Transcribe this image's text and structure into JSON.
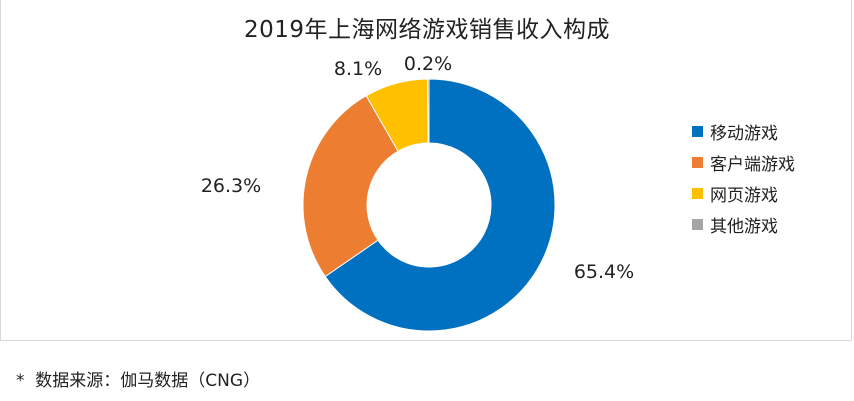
{
  "chart_data": {
    "type": "pie",
    "donut": true,
    "title": "2019年上海网络游戏销售收入构成",
    "series": [
      {
        "name": "移动游戏",
        "value": 65.4,
        "label": "65.4%",
        "color": "#0070c0"
      },
      {
        "name": "客户端游戏",
        "value": 26.3,
        "label": "26.3%",
        "color": "#ed7d31"
      },
      {
        "name": "网页游戏",
        "value": 8.1,
        "label": "8.1%",
        "color": "#ffc000"
      },
      {
        "name": "其他游戏",
        "value": 0.2,
        "label": "0.2%",
        "color": "#a5a5a5"
      }
    ],
    "legend_position": "right",
    "start": "12 o'clock, clockwise"
  },
  "source_note": "*  数据来源：伽马数据（CNG）"
}
